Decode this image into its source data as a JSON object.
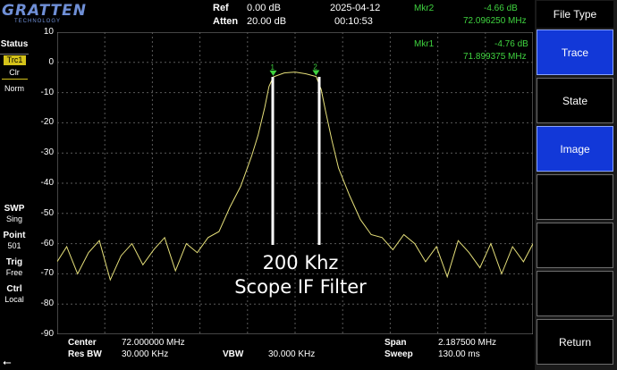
{
  "logo": {
    "name": "GRATTEN",
    "sub": "TECHNOLOGY"
  },
  "header": {
    "ref_label": "Ref",
    "ref_value": "0.00 dB",
    "atten_label": "Atten",
    "atten_value": "20.00 dB",
    "date": "2025-04-12",
    "time": "00:10:53"
  },
  "markers": [
    {
      "label": "Mkr2",
      "level": "-4.66 dB",
      "freq": "72.096250 MHz"
    },
    {
      "label": "Mkr1",
      "level": "-4.76 dB",
      "freq": "71.899375 MHz"
    }
  ],
  "status_panel": {
    "status": "Status",
    "trc": "Trc1",
    "clr": "Clr",
    "norm": "Norm",
    "swp_label": "SWP",
    "swp_value": "Sing",
    "point_label": "Point",
    "point_value": "501",
    "trig_label": "Trig",
    "trig_value": "Free",
    "ctrl_label": "Ctrl",
    "ctrl_value": "Local"
  },
  "bottom": {
    "center_label": "Center",
    "center_value": "72.000000 MHz",
    "rbw_label": "Res BW",
    "rbw_value": "30.000 KHz",
    "vbw_label": "VBW",
    "vbw_value": "30.000 KHz",
    "span_label": "Span",
    "span_value": "2.187500 MHz",
    "sweep_label": "Sweep",
    "sweep_value": "130.00 ms"
  },
  "softkeys": {
    "title": "File Type",
    "items": [
      {
        "label": "Trace",
        "active": true
      },
      {
        "label": "State",
        "active": false
      },
      {
        "label": "Image",
        "active": true
      },
      {
        "label": "",
        "active": false
      },
      {
        "label": "",
        "active": false
      },
      {
        "label": "",
        "active": false
      },
      {
        "label": "Return",
        "active": false
      }
    ]
  },
  "annotation": {
    "line1": "200 Khz",
    "line2": "Scope IF Filter"
  },
  "colors": {
    "trace": "#e6e07a",
    "marker": "#3fd33f",
    "active_key": "#1238d8",
    "grid": "#5a5a5a"
  },
  "chart_data": {
    "type": "line",
    "title": "",
    "xlabel": "",
    "ylabel": "",
    "x_unit": "MHz",
    "center_mhz": 72.0,
    "span_mhz": 2.1875,
    "xlim": [
      70.90625,
      73.09375
    ],
    "ylim": [
      -90,
      10
    ],
    "y_ticks": [
      10,
      0,
      -10,
      -20,
      -30,
      -40,
      -50,
      -60,
      -70,
      -80,
      -90
    ],
    "grid": true,
    "series": [
      {
        "x": [
          70.906,
          70.95,
          71.0,
          71.05,
          71.1,
          71.15,
          71.2,
          71.25,
          71.3,
          71.35,
          71.4,
          71.45,
          71.5,
          71.55,
          71.6,
          71.65,
          71.7,
          71.75,
          71.8,
          71.83,
          71.86,
          71.88,
          71.9,
          71.95,
          72.0,
          72.05,
          72.097,
          72.12,
          72.14,
          72.17,
          72.2,
          72.25,
          72.3,
          72.35,
          72.4,
          72.45,
          72.5,
          72.55,
          72.6,
          72.65,
          72.7,
          72.75,
          72.8,
          72.85,
          72.9,
          72.95,
          73.0,
          73.05,
          73.094
        ],
        "y": [
          -66,
          -61,
          -70,
          -63,
          -59,
          -72,
          -64,
          -60,
          -67,
          -62,
          -58,
          -69,
          -60,
          -63,
          -58,
          -56,
          -48,
          -41,
          -31,
          -24,
          -15,
          -8,
          -4.8,
          -3.5,
          -3.2,
          -3.8,
          -4.7,
          -9,
          -16,
          -26,
          -35,
          -44,
          -52,
          -57,
          -58,
          -62,
          -57,
          -60,
          -66,
          -61,
          -71,
          -59,
          -63,
          -68,
          -60,
          -70,
          -61,
          -66,
          -60
        ]
      }
    ],
    "markers": [
      {
        "label": "1",
        "x": 71.899375,
        "y": -4.76
      },
      {
        "label": "2",
        "x": 72.09625,
        "y": -4.66
      }
    ]
  }
}
